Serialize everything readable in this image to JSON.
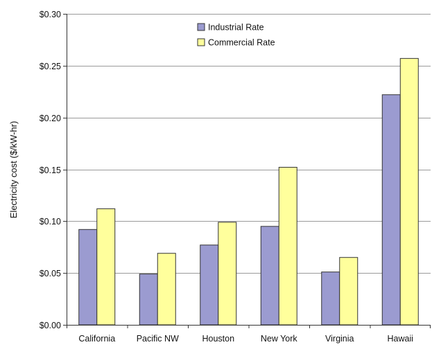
{
  "chart_data": {
    "type": "bar",
    "title": "",
    "xlabel": "",
    "ylabel": "Electricity cost ($/kW-hr)",
    "categories": [
      "California",
      "Pacific NW",
      "Houston",
      "New York",
      "Virginia",
      "Hawaii"
    ],
    "series": [
      {
        "name": "Industrial Rate",
        "color": "#9b9bd0",
        "values": [
          0.092,
          0.049,
          0.077,
          0.095,
          0.051,
          0.222
        ]
      },
      {
        "name": "Commercial Rate",
        "color": "#ffff9c",
        "values": [
          0.112,
          0.069,
          0.099,
          0.152,
          0.065,
          0.257
        ]
      }
    ],
    "ylim": [
      0,
      0.3
    ],
    "yticks": [
      0.0,
      0.05,
      0.1,
      0.15,
      0.2,
      0.25,
      0.3
    ],
    "ytick_labels": [
      "$0.00",
      "$0.05",
      "$0.10",
      "$0.15",
      "$0.20",
      "$0.25",
      "$0.30"
    ],
    "grid": true,
    "legend_position": "top-center"
  }
}
